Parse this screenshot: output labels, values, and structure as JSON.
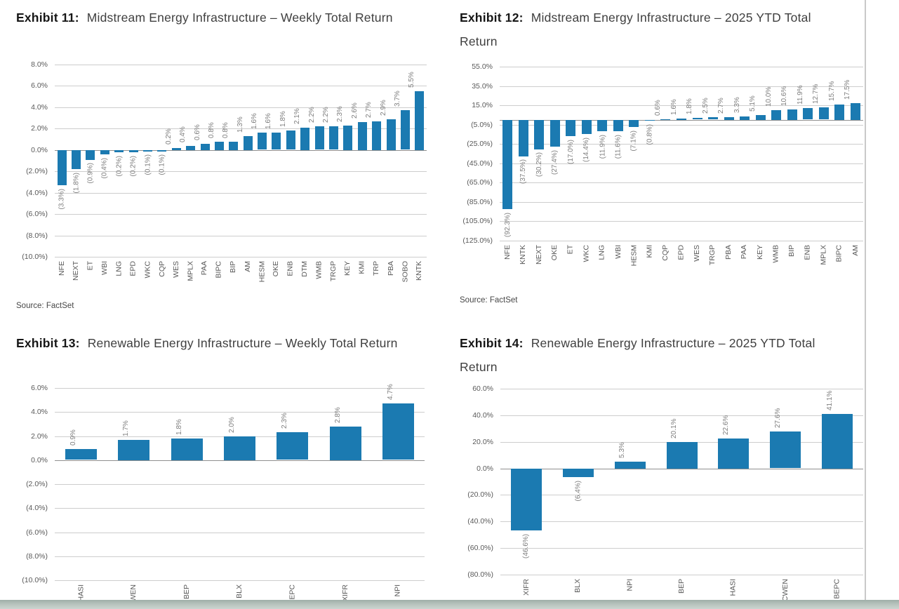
{
  "colors": {
    "bar": "#1b7ab1",
    "gridline": "#cdcdcd",
    "zero_axis": "#8f8f8f",
    "bottom_band": "#aebbb5",
    "page_edge": "#c9c9c9"
  },
  "chart_data": [
    {
      "type": "bar",
      "exhibit_label": "Exhibit 11:",
      "title": "Midstream Energy Infrastructure – Weekly Total Return",
      "source": "Source: FactSet",
      "xlabel": "",
      "ylabel": "",
      "ylim": [
        -10,
        8
      ],
      "grid": true,
      "y_ticks": [
        {
          "v": 8,
          "label": "8.0%"
        },
        {
          "v": 6,
          "label": "6.0%"
        },
        {
          "v": 4,
          "label": "4.0%"
        },
        {
          "v": 2,
          "label": "2.0%"
        },
        {
          "v": 0,
          "label": "0.0%"
        },
        {
          "v": -2,
          "label": "(2.0%)"
        },
        {
          "v": -4,
          "label": "(4.0%)"
        },
        {
          "v": -6,
          "label": "(6.0%)"
        },
        {
          "v": -8,
          "label": "(8.0%)"
        },
        {
          "v": -10,
          "label": "(10.0%)"
        }
      ],
      "points": [
        {
          "t": "NFE",
          "v": -3.3,
          "d": "(3.3%)"
        },
        {
          "t": "NEXT",
          "v": -1.8,
          "d": "(1.8%)"
        },
        {
          "t": "ET",
          "v": -0.9,
          "d": "(0.9%)"
        },
        {
          "t": "WBI",
          "v": -0.4,
          "d": "(0.4%)"
        },
        {
          "t": "LNG",
          "v": -0.2,
          "d": "(0.2%)"
        },
        {
          "t": "EPD",
          "v": -0.2,
          "d": "(0.2%)"
        },
        {
          "t": "WKC",
          "v": -0.1,
          "d": "(0.1%)"
        },
        {
          "t": "CQP",
          "v": -0.1,
          "d": "(0.1%)"
        },
        {
          "t": "WES",
          "v": 0.2,
          "d": "0.2%"
        },
        {
          "t": "MPLX",
          "v": 0.4,
          "d": "0.4%"
        },
        {
          "t": "PAA",
          "v": 0.6,
          "d": "0.6%"
        },
        {
          "t": "BIPC",
          "v": 0.8,
          "d": "0.8%"
        },
        {
          "t": "BIP",
          "v": 0.8,
          "d": "0.8%"
        },
        {
          "t": "AM",
          "v": 1.3,
          "d": "1.3%"
        },
        {
          "t": "HESM",
          "v": 1.6,
          "d": "1.6%"
        },
        {
          "t": "OKE",
          "v": 1.6,
          "d": "1.6%"
        },
        {
          "t": "ENB",
          "v": 1.8,
          "d": "1.8%"
        },
        {
          "t": "DTM",
          "v": 2.1,
          "d": "2.1%"
        },
        {
          "t": "WMB",
          "v": 2.2,
          "d": "2.2%"
        },
        {
          "t": "TRGP",
          "v": 2.2,
          "d": "2.2%"
        },
        {
          "t": "KEY",
          "v": 2.3,
          "d": "2.3%"
        },
        {
          "t": "KMI",
          "v": 2.6,
          "d": "2.6%"
        },
        {
          "t": "TRP",
          "v": 2.7,
          "d": "2.7%"
        },
        {
          "t": "PBA",
          "v": 2.9,
          "d": "2.9%"
        },
        {
          "t": "SOBO",
          "v": 3.7,
          "d": "3.7%"
        },
        {
          "t": "KNTK",
          "v": 5.5,
          "d": "5.5%"
        }
      ]
    },
    {
      "type": "bar",
      "exhibit_label": "Exhibit 12:",
      "title": "Midstream Energy Infrastructure – 2025 YTD Total Return",
      "source": "Source: FactSet",
      "xlabel": "",
      "ylabel": "",
      "ylim": [
        -125,
        55
      ],
      "grid": true,
      "y_ticks": [
        {
          "v": 55,
          "label": "55.0%"
        },
        {
          "v": 35,
          "label": "35.0%"
        },
        {
          "v": 15,
          "label": "15.0%"
        },
        {
          "v": -5,
          "label": "(5.0%)"
        },
        {
          "v": -25,
          "label": "(25.0%)"
        },
        {
          "v": -45,
          "label": "(45.0%)"
        },
        {
          "v": -65,
          "label": "(65.0%)"
        },
        {
          "v": -85,
          "label": "(85.0%)"
        },
        {
          "v": -105,
          "label": "(105.0%)"
        },
        {
          "v": -125,
          "label": "(125.0%)"
        }
      ],
      "points": [
        {
          "t": "NFE",
          "v": -92.3,
          "d": "(92.3%)"
        },
        {
          "t": "KNTK",
          "v": -37.5,
          "d": "(37.5%)"
        },
        {
          "t": "NEXT",
          "v": -30.2,
          "d": "(30.2%)"
        },
        {
          "t": "OKE",
          "v": -27.4,
          "d": "(27.4%)"
        },
        {
          "t": "ET",
          "v": -17.0,
          "d": "(17.0%)"
        },
        {
          "t": "WKC",
          "v": -14.4,
          "d": "(14.4%)"
        },
        {
          "t": "LNG",
          "v": -11.9,
          "d": "(11.9%)"
        },
        {
          "t": "WBI",
          "v": -11.6,
          "d": "(11.6%)"
        },
        {
          "t": "HESM",
          "v": -7.1,
          "d": "(7.1%)"
        },
        {
          "t": "KMI",
          "v": -0.8,
          "d": "(0.8%)"
        },
        {
          "t": "CQP",
          "v": 0.6,
          "d": "0.6%"
        },
        {
          "t": "EPD",
          "v": 1.6,
          "d": "1.6%"
        },
        {
          "t": "WES",
          "v": 1.8,
          "d": "1.8%"
        },
        {
          "t": "TRGP",
          "v": 2.5,
          "d": "2.5%"
        },
        {
          "t": "PBA",
          "v": 2.7,
          "d": "2.7%"
        },
        {
          "t": "PAA",
          "v": 3.3,
          "d": "3.3%"
        },
        {
          "t": "KEY",
          "v": 5.1,
          "d": "5.1%"
        },
        {
          "t": "WMB",
          "v": 10.0,
          "d": "10.0%"
        },
        {
          "t": "BIP",
          "v": 10.6,
          "d": "10.6%"
        },
        {
          "t": "ENB",
          "v": 11.9,
          "d": "11.9%"
        },
        {
          "t": "MPLX",
          "v": 12.7,
          "d": "12.7%"
        },
        {
          "t": "BIPC",
          "v": 15.7,
          "d": "15.7%"
        },
        {
          "t": "AM",
          "v": 17.5,
          "d": "17.5%"
        }
      ]
    },
    {
      "type": "bar",
      "exhibit_label": "Exhibit 13:",
      "title": "Renewable Energy Infrastructure – Weekly Total Return",
      "xlabel": "",
      "ylabel": "",
      "ylim": [
        -10,
        6
      ],
      "grid": true,
      "y_ticks": [
        {
          "v": 6,
          "label": "6.0%"
        },
        {
          "v": 4,
          "label": "4.0%"
        },
        {
          "v": 2,
          "label": "2.0%"
        },
        {
          "v": 0,
          "label": "0.0%"
        },
        {
          "v": -2,
          "label": "(2.0%)"
        },
        {
          "v": -4,
          "label": "(4.0%)"
        },
        {
          "v": -6,
          "label": "(6.0%)"
        },
        {
          "v": -8,
          "label": "(8.0%)"
        },
        {
          "v": -10,
          "label": "(10.0%)"
        }
      ],
      "points": [
        {
          "t": "HASI",
          "v": 0.9,
          "d": "0.9%"
        },
        {
          "t": "CWEN",
          "v": 1.7,
          "d": "1.7%"
        },
        {
          "t": "BEP",
          "v": 1.8,
          "d": "1.8%"
        },
        {
          "t": "BLX",
          "v": 2.0,
          "d": "2.0%"
        },
        {
          "t": "BEPC",
          "v": 2.3,
          "d": "2.3%"
        },
        {
          "t": "XIFR",
          "v": 2.8,
          "d": "2.8%"
        },
        {
          "t": "NPI",
          "v": 4.7,
          "d": "4.7%"
        }
      ]
    },
    {
      "type": "bar",
      "exhibit_label": "Exhibit 14:",
      "title": "Renewable Energy Infrastructure – 2025 YTD Total Return",
      "xlabel": "",
      "ylabel": "",
      "ylim": [
        -80,
        60
      ],
      "grid": true,
      "y_ticks": [
        {
          "v": 60,
          "label": "60.0%"
        },
        {
          "v": 40,
          "label": "40.0%"
        },
        {
          "v": 20,
          "label": "20.0%"
        },
        {
          "v": 0,
          "label": "0.0%"
        },
        {
          "v": -20,
          "label": "(20.0%)"
        },
        {
          "v": -40,
          "label": "(40.0%)"
        },
        {
          "v": -60,
          "label": "(60.0%)"
        },
        {
          "v": -80,
          "label": "(80.0%)"
        }
      ],
      "points": [
        {
          "t": "XIFR",
          "v": -46.6,
          "d": "(46.6%)"
        },
        {
          "t": "BLX",
          "v": -6.4,
          "d": "(6.4%)"
        },
        {
          "t": "NPI",
          "v": 5.3,
          "d": "5.3%"
        },
        {
          "t": "BEP",
          "v": 20.1,
          "d": "20.1%"
        },
        {
          "t": "HASI",
          "v": 22.6,
          "d": "22.6%"
        },
        {
          "t": "CWEN",
          "v": 27.6,
          "d": "27.6%"
        },
        {
          "t": "BEPC",
          "v": 41.1,
          "d": "41.1%"
        }
      ]
    }
  ]
}
